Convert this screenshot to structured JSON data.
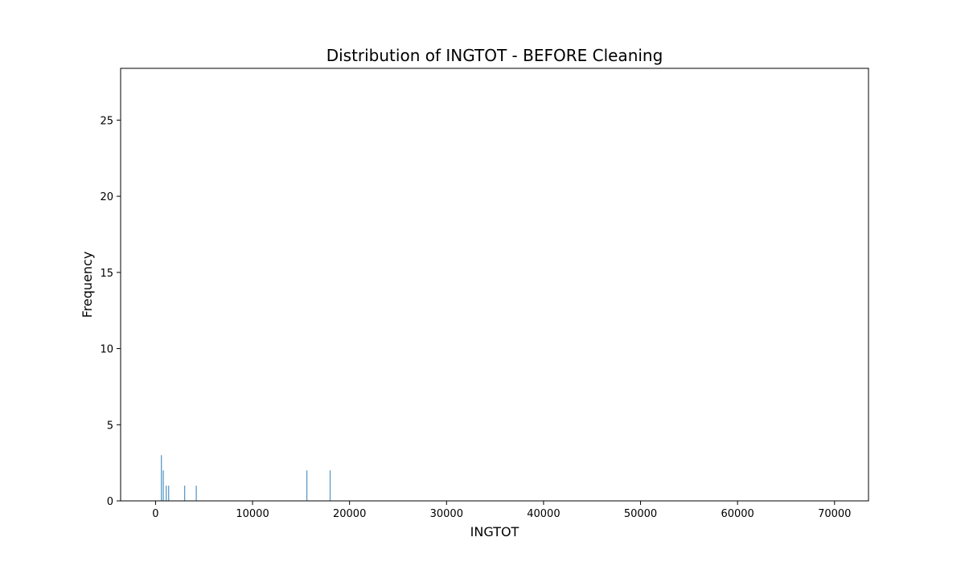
{
  "chart_data": {
    "type": "bar",
    "title": "Distribution of INGTOT - BEFORE Cleaning",
    "xlabel": "INGTOT",
    "ylabel": "Frequency",
    "xlim": [
      -3600,
      73500
    ],
    "ylim": [
      0,
      28.4
    ],
    "xticks": [
      0,
      10000,
      20000,
      30000,
      40000,
      50000,
      60000,
      70000
    ],
    "yticks": [
      0,
      5,
      10,
      15,
      20,
      25
    ],
    "bar_color": "#5a9bc9",
    "grid": false,
    "series": [
      {
        "x": [
          600,
          800,
          1100,
          1350,
          3000,
          4200,
          15600,
          18000
        ],
        "values": [
          3,
          2,
          1,
          1,
          1,
          1,
          2,
          2
        ]
      }
    ]
  }
}
